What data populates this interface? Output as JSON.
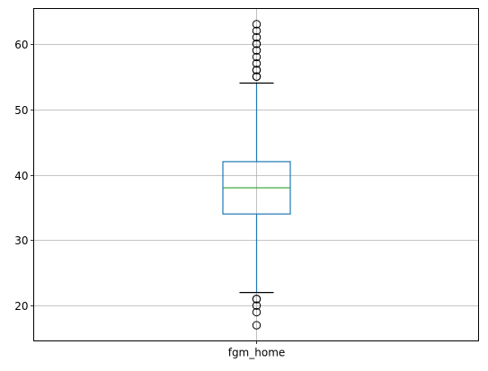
{
  "chart_data": {
    "type": "box",
    "title": "",
    "xlabel": "",
    "ylabel": "",
    "categories": [
      "fgm_home"
    ],
    "ylim": [
      14.6,
      65.4
    ],
    "yticks": [
      20,
      30,
      40,
      50,
      60
    ],
    "ytick_labels": [
      "20",
      "30",
      "40",
      "50",
      "60"
    ],
    "grid": true,
    "boxes": [
      {
        "name": "fgm_home",
        "whisker_low": 22,
        "q1": 34,
        "median": 38,
        "q3": 42,
        "whisker_high": 54,
        "fliers": [
          17,
          19,
          20,
          21,
          21,
          55,
          55,
          56,
          56,
          57,
          58,
          59,
          60,
          60,
          61,
          62,
          63
        ]
      }
    ],
    "colors": {
      "box": "#1f77b4",
      "whisker": "#1f77b4",
      "cap": "#000000",
      "median": "#2ca02c",
      "flier": "#000000",
      "grid": "#b0b0b0"
    }
  }
}
